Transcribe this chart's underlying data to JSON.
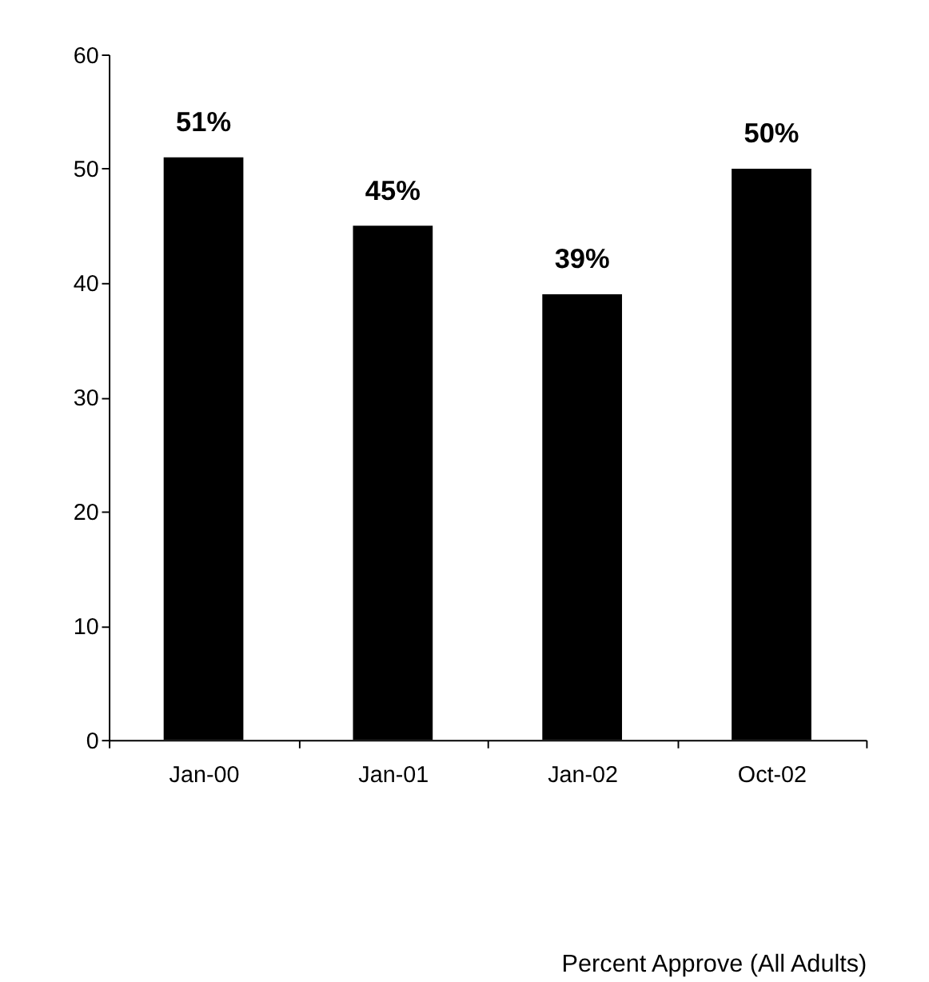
{
  "chart_data": {
    "type": "bar",
    "categories": [
      "Jan-00",
      "Jan-01",
      "Jan-02",
      "Oct-02"
    ],
    "values": [
      51,
      45,
      39,
      50
    ],
    "value_labels": [
      "51%",
      "45%",
      "39%",
      "50%"
    ],
    "color": "#000000",
    "ylim": [
      0,
      60
    ],
    "yticks": [
      0,
      10,
      20,
      30,
      40,
      50,
      60
    ],
    "grid": false,
    "annotations": [
      "Percent Approve (All Adults)"
    ]
  }
}
